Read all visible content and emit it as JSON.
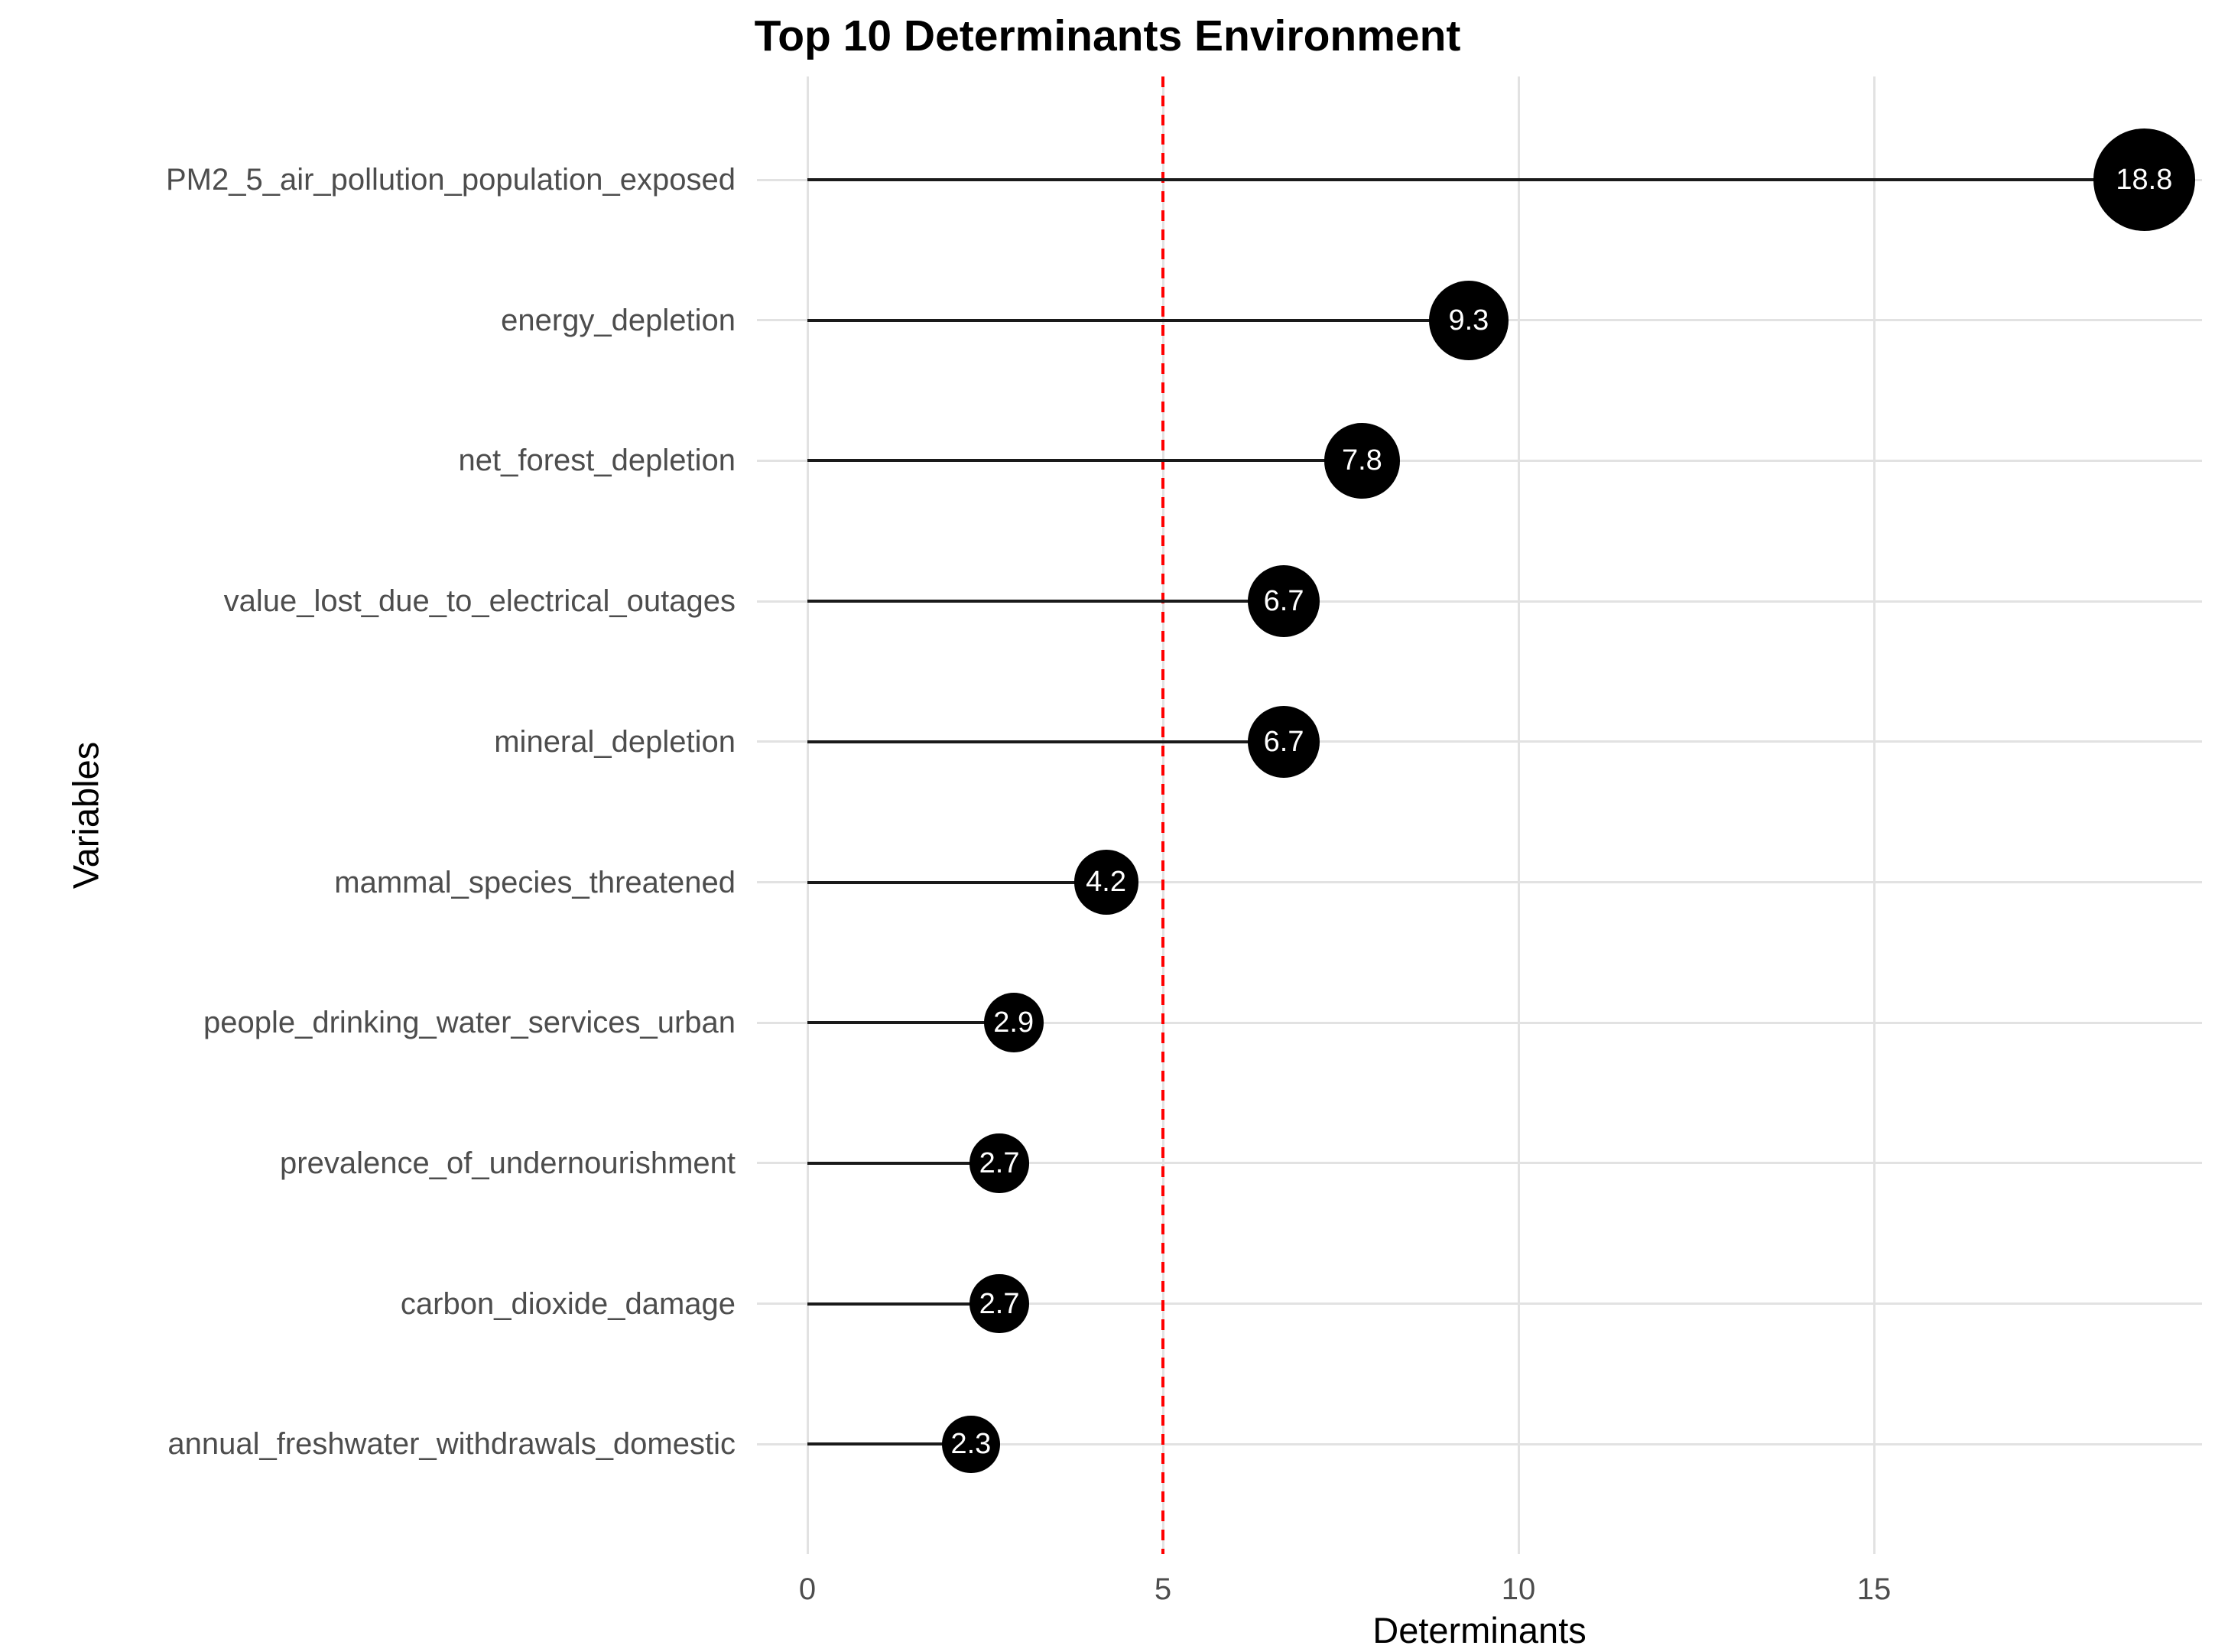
{
  "chart_data": {
    "type": "bar",
    "variant": "lollipop",
    "title": "Top 10 Determinants Environment",
    "xlabel": "Determinants",
    "ylabel": "Variables",
    "categories": [
      "PM2_5_air_pollution_population_exposed",
      "energy_depletion",
      "net_forest_depletion",
      "value_lost_due_to_electrical_outages",
      "mineral_depletion",
      "mammal_species_threatened",
      "people_drinking_water_services_urban",
      "prevalence_of_undernourishment",
      "carbon_dioxide_damage",
      "annual_freshwater_withdrawals_domestic"
    ],
    "values": [
      18.8,
      9.3,
      7.8,
      6.7,
      6.7,
      4.2,
      2.9,
      2.7,
      2.7,
      2.3
    ],
    "point_labels": [
      "18.8",
      "9.3",
      "7.8",
      "6.7",
      "6.7",
      "4.2",
      "2.9",
      "2.7",
      "2.7",
      "2.3"
    ],
    "x_ticks": [
      0,
      5,
      10,
      15
    ],
    "xlim": [
      -0.7,
      19.6
    ],
    "reference_line": {
      "x": 5,
      "color": "#ff0000",
      "style": "dashed"
    },
    "grid": true,
    "legend_position": "none",
    "colors": {
      "point_fill": "#000000",
      "point_label": "#ffffff",
      "stem": "#1a1a1a",
      "gridline": "#e2e2e2",
      "axis_text": "#4d4d4d",
      "axis_title": "#000000",
      "title": "#000000",
      "background": "#ffffff"
    }
  }
}
